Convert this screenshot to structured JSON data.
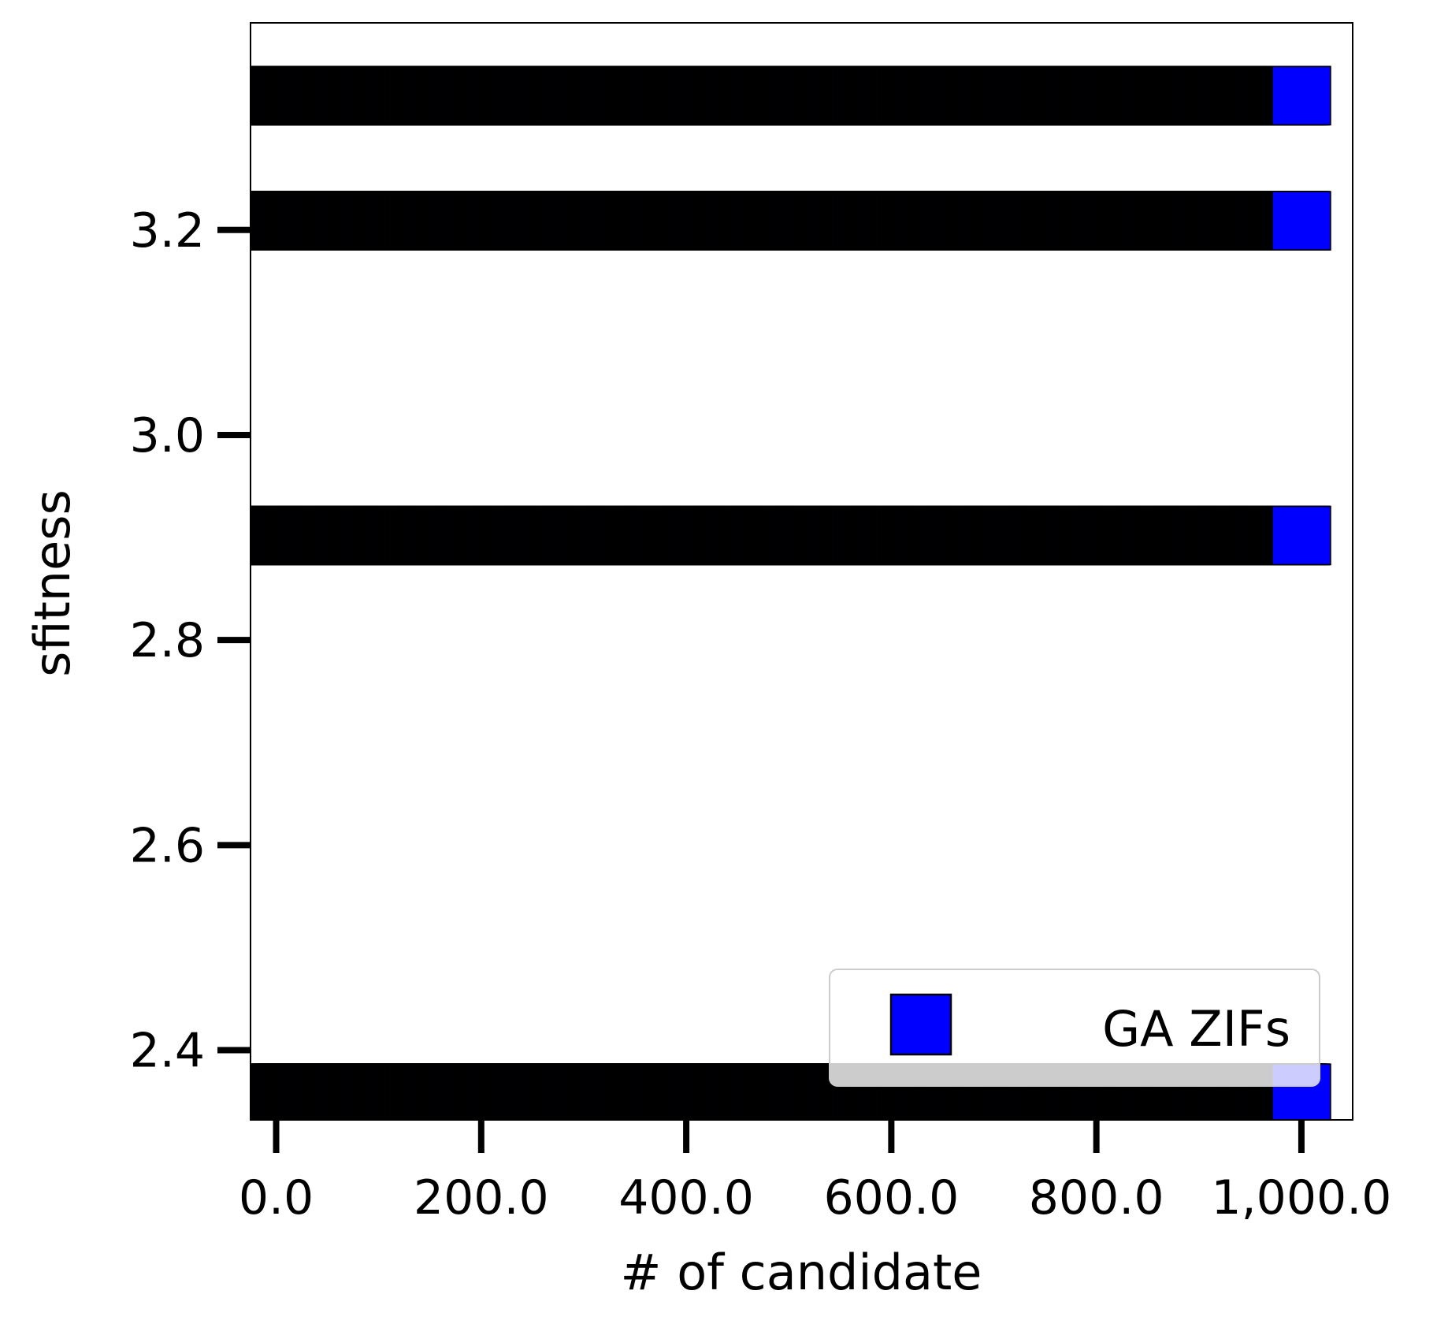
{
  "chart_data": {
    "type": "scatter",
    "title": "",
    "xlabel": "# of candidate",
    "ylabel": "sfitness",
    "xlim": [
      -25,
      1050
    ],
    "ylim": [
      2.332,
      3.402
    ],
    "xticks": [
      0,
      200,
      400,
      600,
      800,
      1000
    ],
    "xtick_labels": [
      "0.0",
      "200.0",
      "400.0",
      "600.0",
      "800.0",
      "1,000.0"
    ],
    "yticks": [
      2.4,
      2.6,
      2.8,
      3.0,
      3.2
    ],
    "ytick_labels": [
      "2.4",
      "2.6",
      "2.8",
      "3.0",
      "3.2"
    ],
    "marker": "square",
    "grid": false,
    "legend_position": "lower right",
    "series": [
      {
        "name": "GA ZIFs",
        "color": "#0000ff",
        "edge_color": "#000000",
        "x_range": [
          0,
          1000
        ],
        "point_count": 1000,
        "y_levels": [
          3.331,
          3.209,
          2.902,
          2.358
        ],
        "min_value": 2.358,
        "max_value": 3.331
      }
    ]
  }
}
